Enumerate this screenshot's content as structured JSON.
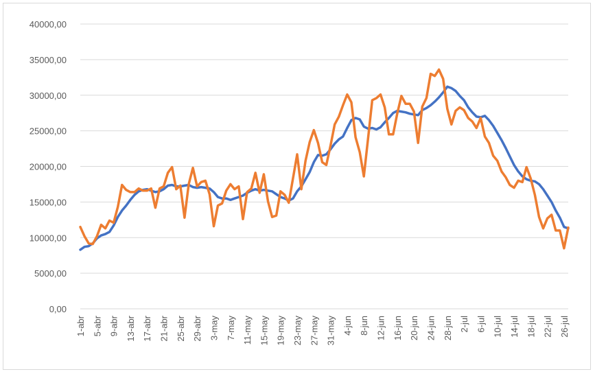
{
  "chart_data": {
    "type": "line",
    "title": "",
    "xlabel": "",
    "ylabel": "",
    "ylim": [
      0,
      40000
    ],
    "y_ticks": [
      "0,00",
      "5000,00",
      "10000,00",
      "15000,00",
      "20000,00",
      "25000,00",
      "30000,00",
      "35000,00",
      "40000,00"
    ],
    "y_tick_values": [
      0,
      5000,
      10000,
      15000,
      20000,
      25000,
      30000,
      35000,
      40000
    ],
    "grid": true,
    "legend": "none",
    "x_tick_labels": [
      "1-abr",
      "5-abr",
      "9-abr",
      "13-abr",
      "17-abr",
      "21-abr",
      "25-abr",
      "29-abr",
      "3-may",
      "7-may",
      "11-may",
      "15-may",
      "19-may",
      "23-may",
      "27-may",
      "31-may",
      "4-jun",
      "8-jun",
      "12-jun",
      "16-jun",
      "20-jun",
      "24-jun",
      "28-jun",
      "2-jul",
      "6-jul",
      "10-jul",
      "14-jul",
      "18-jul",
      "22-jul",
      "26-jul"
    ],
    "colors": {
      "smoothed": "#4472c4",
      "daily": "#ed7d31",
      "grid": "#d9d9d9",
      "axis": "#bfbfbf"
    },
    "series": [
      {
        "values": [
          8300,
          8700,
          8800,
          9200,
          9900,
          10300,
          10500,
          10800,
          11700,
          12900,
          13800,
          14500,
          15300,
          16000,
          16500,
          16700,
          16800,
          16600,
          16400,
          16500,
          16800,
          17300,
          17400,
          17200,
          17200,
          17300,
          17400,
          17100,
          17000,
          17100,
          17000,
          16900,
          16400,
          15700,
          15500,
          15500,
          15300,
          15500,
          15700,
          15900,
          16300,
          16600,
          16800,
          16600,
          16700,
          16600,
          16500,
          16100,
          15700,
          15500,
          15200,
          15500,
          16500,
          17200,
          18200,
          19200,
          20600,
          21600,
          21500,
          21700,
          22400,
          23200,
          23800,
          24200,
          25400,
          26500,
          26800,
          26600,
          25600,
          25300,
          25400,
          25200,
          25500,
          26200,
          26800,
          27500,
          27800,
          27700,
          27600,
          27400,
          27300,
          27200,
          27900,
          28200,
          28600,
          29100,
          29700,
          30400,
          31200,
          31000,
          30600,
          29900,
          29300,
          28300,
          27600,
          27000,
          26900,
          27100,
          26500,
          25700,
          24700,
          23700,
          22600,
          21400,
          20200,
          19300,
          18600,
          18200,
          18000,
          17900,
          17500,
          16800,
          15900,
          15000,
          13800,
          12800,
          11500,
          11300
        ]
      },
      {
        "values": [
          11500,
          10200,
          9200,
          9100,
          10200,
          11800,
          11300,
          12400,
          12100,
          14300,
          17400,
          16700,
          16400,
          16400,
          16900,
          16600,
          16600,
          16900,
          14200,
          16900,
          17200,
          19100,
          19900,
          16800,
          17300,
          12800,
          17500,
          19800,
          17200,
          17800,
          18000,
          16100,
          11600,
          14500,
          14800,
          16600,
          17500,
          16800,
          17200,
          12600,
          16400,
          16900,
          19100,
          16300,
          18900,
          15100,
          12900,
          13100,
          16500,
          16000,
          14900,
          18300,
          21700,
          16800,
          20800,
          23400,
          25100,
          23300,
          20600,
          20200,
          22900,
          25900,
          27000,
          28600,
          30100,
          29000,
          24100,
          22000,
          18600,
          23900,
          29300,
          29600,
          30100,
          28300,
          24500,
          24500,
          27400,
          29900,
          28800,
          28800,
          27700,
          23300,
          28400,
          29600,
          33000,
          32700,
          33600,
          32300,
          28100,
          25900,
          27800,
          28300,
          27900,
          26800,
          26300,
          25400,
          26800,
          24200,
          23300,
          21500,
          20800,
          19300,
          18500,
          17400,
          17000,
          18000,
          17800,
          19900,
          18300,
          16000,
          12900,
          11300,
          12700,
          13200,
          11000,
          11000,
          8500,
          11400
        ]
      }
    ]
  }
}
